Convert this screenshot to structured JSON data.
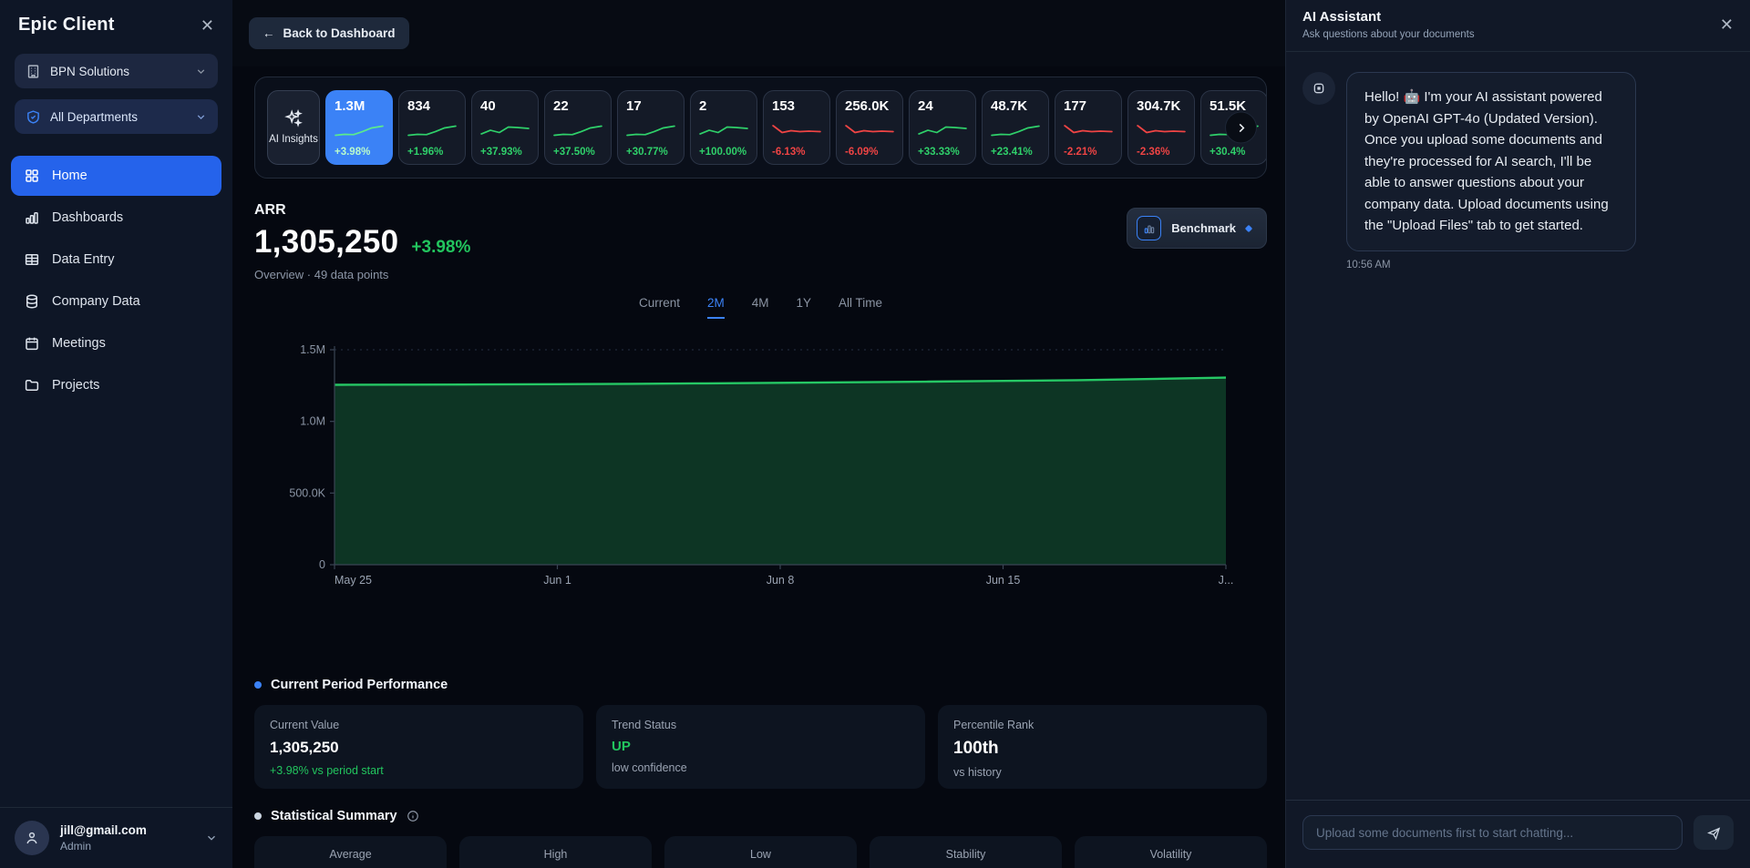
{
  "colors": {
    "accent_blue": "#3b82f6",
    "green": "#22c55e",
    "red": "#ef4444"
  },
  "sidebar": {
    "title": "Epic Client",
    "org_selector": {
      "label": "BPN Solutions"
    },
    "dept_selector": {
      "label": "All Departments"
    },
    "nav": [
      {
        "label": "Home",
        "icon": "grid-icon",
        "active": true
      },
      {
        "label": "Dashboards",
        "icon": "bar-chart-icon",
        "active": false
      },
      {
        "label": "Data Entry",
        "icon": "table-icon",
        "active": false
      },
      {
        "label": "Company Data",
        "icon": "database-icon",
        "active": false
      },
      {
        "label": "Meetings",
        "icon": "calendar-icon",
        "active": false
      },
      {
        "label": "Projects",
        "icon": "folder-icon",
        "active": false
      }
    ],
    "user": {
      "email": "jill@gmail.com",
      "role": "Admin"
    }
  },
  "topbar": {
    "back_label": "Back to Dashboard"
  },
  "metrics": {
    "ai_insights_label": "AI Insights",
    "cards": [
      {
        "value": "1.3M",
        "change": "+3.98%",
        "trend": "up",
        "selected": true
      },
      {
        "value": "834",
        "change": "+1.96%",
        "trend": "up",
        "selected": false
      },
      {
        "value": "40",
        "change": "+37.93%",
        "trend": "up",
        "selected": false
      },
      {
        "value": "22",
        "change": "+37.50%",
        "trend": "up",
        "selected": false
      },
      {
        "value": "17",
        "change": "+30.77%",
        "trend": "up",
        "selected": false
      },
      {
        "value": "2",
        "change": "+100.00%",
        "trend": "up",
        "selected": false
      },
      {
        "value": "153",
        "change": "-6.13%",
        "trend": "down",
        "selected": false
      },
      {
        "value": "256.0K",
        "change": "-6.09%",
        "trend": "down",
        "selected": false
      },
      {
        "value": "24",
        "change": "+33.33%",
        "trend": "up",
        "selected": false
      },
      {
        "value": "48.7K",
        "change": "+23.41%",
        "trend": "up",
        "selected": false
      },
      {
        "value": "177",
        "change": "-2.21%",
        "trend": "down",
        "selected": false
      },
      {
        "value": "304.7K",
        "change": "-2.36%",
        "trend": "down",
        "selected": false
      },
      {
        "value": "51.5K",
        "change": "+30.4%",
        "trend": "up",
        "selected": false
      }
    ]
  },
  "metric_detail": {
    "title": "ARR",
    "value": "1,305,250",
    "change": "+3.98%",
    "subtitle": "Overview · 49 data points",
    "benchmark_label": "Benchmark",
    "tabs": [
      "Current",
      "2M",
      "4M",
      "1Y",
      "All Time"
    ],
    "active_tab": "2M"
  },
  "chart_data": {
    "type": "area",
    "title": "ARR",
    "points_count": 49,
    "x": [
      "May 25",
      "Jun 1",
      "Jun 8",
      "Jun 15",
      "J..."
    ],
    "series": [
      {
        "name": "ARR",
        "values": [
          1255000,
          1256500,
          1258000,
          1260000,
          1262500,
          1265500,
          1269000,
          1273000,
          1277500,
          1282500,
          1288000,
          1296000,
          1305250
        ]
      }
    ],
    "ylim": [
      0,
      1500000
    ],
    "yticks": [
      {
        "label": "0",
        "value": 0
      },
      {
        "label": "500.0K",
        "value": 500000
      },
      {
        "label": "1.0M",
        "value": 1000000
      },
      {
        "label": "1.5M",
        "value": 1500000
      }
    ],
    "grid": "top-line-dotted",
    "line_color": "#26c865",
    "fill_color": "#0d3524"
  },
  "performance": {
    "heading": "Current Period Performance",
    "cards": [
      {
        "label": "Current Value",
        "value": "1,305,250",
        "sub": "+3.98% vs period start",
        "value_accent": false,
        "sub_accent": true
      },
      {
        "label": "Trend Status",
        "value": "UP",
        "sub": "low confidence",
        "value_accent": true,
        "sub_accent": false
      },
      {
        "label": "Percentile Rank",
        "value": "100th",
        "sub": "vs history",
        "value_accent": false,
        "sub_accent": false
      }
    ]
  },
  "stats": {
    "heading": "Statistical Summary",
    "columns": [
      "Average",
      "High",
      "Low",
      "Stability",
      "Volatility"
    ]
  },
  "assistant": {
    "title": "AI Assistant",
    "subtitle": "Ask questions about your documents",
    "message": "Hello! 🤖 I'm your AI assistant powered by OpenAI GPT-4o (Updated Version). Once you upload some documents and they're processed for AI search, I'll be able to answer questions about your company data. Upload documents using the \"Upload Files\" tab to get started.",
    "timestamp": "10:56 AM",
    "input_placeholder": "Upload some documents first to start chatting..."
  }
}
